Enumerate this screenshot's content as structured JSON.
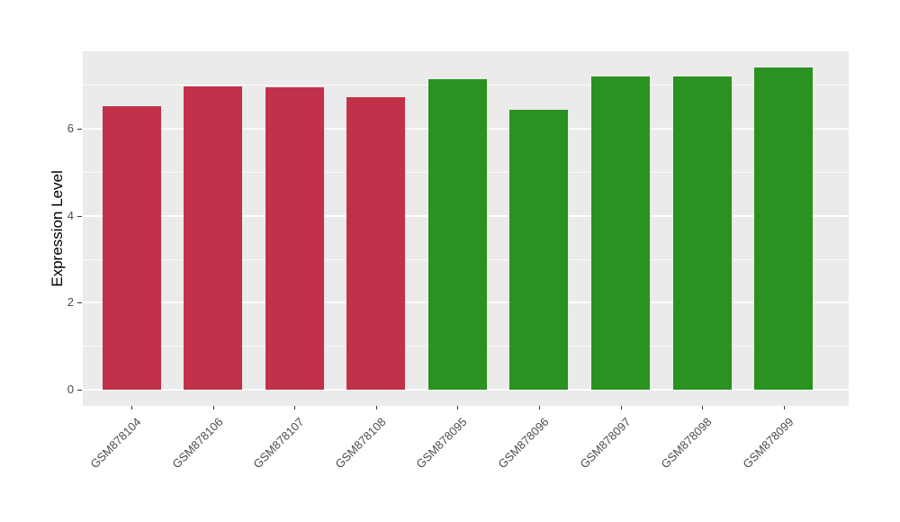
{
  "figure": {
    "background": "#FFFFFF",
    "style": "ggplot2-theme-gray"
  },
  "chart_data": {
    "type": "bar",
    "title": "",
    "xlabel": "",
    "ylabel": "Expression Level",
    "categories": [
      "GSM878104",
      "GSM878106",
      "GSM878107",
      "GSM878108",
      "GSM878095",
      "GSM878096",
      "GSM878097",
      "GSM878098",
      "GSM878099"
    ],
    "values": [
      6.52,
      6.97,
      6.95,
      6.73,
      7.13,
      6.44,
      7.2,
      7.2,
      7.41
    ],
    "bar_groups": [
      "group1",
      "group1",
      "group1",
      "group1",
      "group2",
      "group2",
      "group2",
      "group2",
      "group2"
    ],
    "group_colors": {
      "group1": "#C2314A",
      "group2": "#2A9220"
    },
    "yticks": [
      0,
      2,
      4,
      6
    ],
    "ytick_labels": [
      "0",
      "2",
      "4",
      "6"
    ],
    "minor_yticks": [
      1,
      3,
      5,
      7
    ],
    "ylim": [
      0,
      7.78
    ],
    "grid": "on",
    "legend_position": "none",
    "x_label_rotation_deg": 45,
    "panel_background": "#EBEBEB",
    "gridline_color": "#FFFFFF",
    "axis_text_color": "#4D4D4D",
    "tick_color": "#333333"
  }
}
